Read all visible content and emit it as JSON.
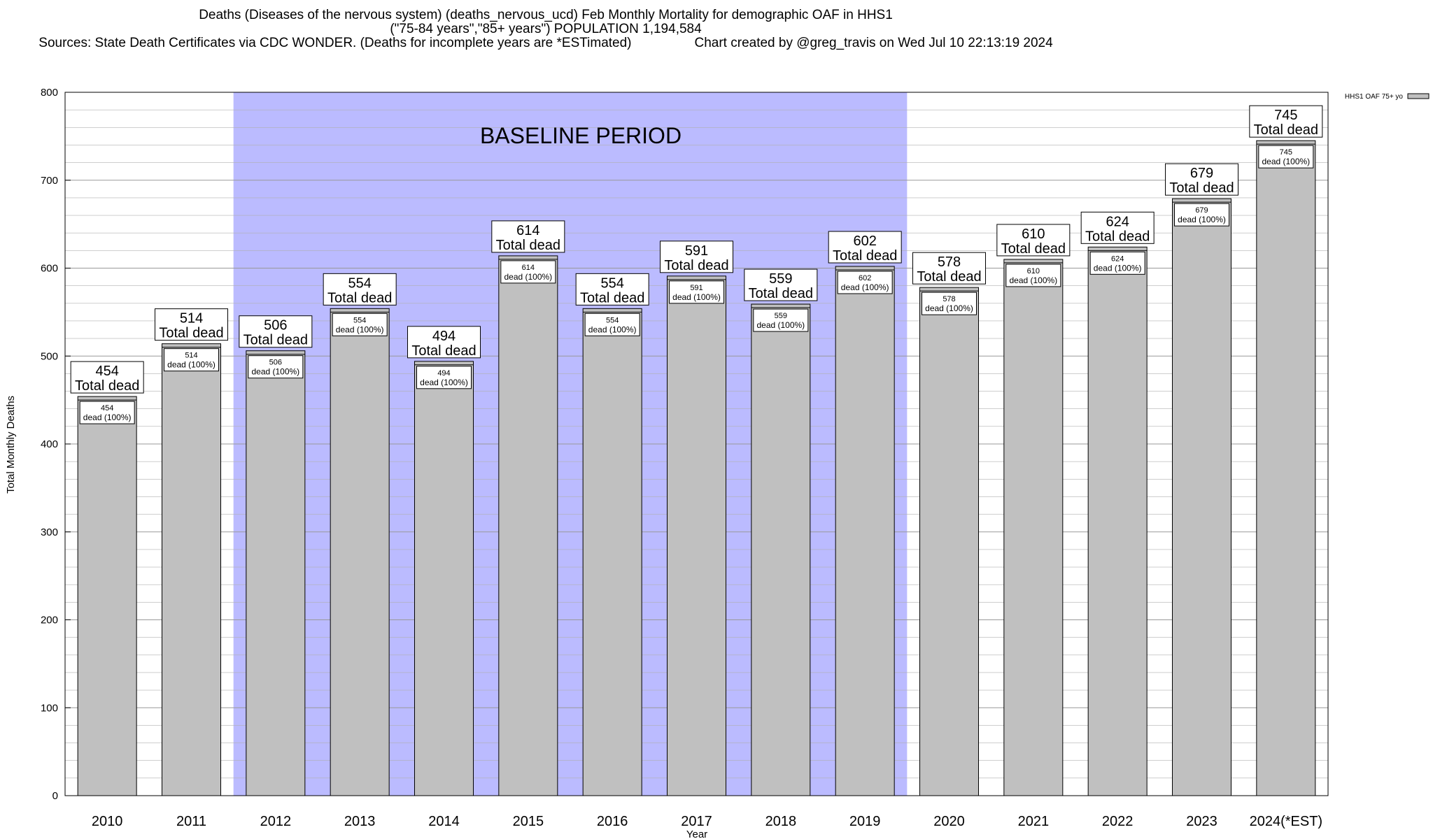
{
  "chart_data": {
    "type": "bar",
    "title_lines": [
      "Deaths (Diseases of the nervous system) (deaths_nervous_ucd) Feb Monthly Mortality for demographic OAF in HHS1",
      "(\"75-84 years\",\"85+ years\") POPULATION 1,194,584"
    ],
    "sources": "Sources: State Death Certificates via CDC WONDER. (Deaths for incomplete years are *ESTimated)",
    "credit": "Chart created by @greg_travis on Wed Jul 10 22:13:19 2024",
    "xlabel": "Year",
    "ylabel": "Total Monthly Deaths",
    "ylim": [
      0,
      800
    ],
    "y_ticks": [
      0,
      100,
      200,
      300,
      400,
      500,
      600,
      700,
      800
    ],
    "y_minor_step": 20,
    "grid": true,
    "legend": {
      "placement": "top-right",
      "label": "HHS1 OAF 75+ yo"
    },
    "categories": [
      "2010",
      "2011",
      "2012",
      "2013",
      "2014",
      "2015",
      "2016",
      "2017",
      "2018",
      "2019",
      "2020",
      "2021",
      "2022",
      "2023",
      "2024(*EST)"
    ],
    "series": [
      {
        "name": "HHS1 OAF 75+ yo",
        "values": [
          454,
          514,
          506,
          554,
          494,
          614,
          554,
          591,
          559,
          602,
          578,
          610,
          624,
          679,
          745
        ]
      }
    ],
    "total_label": "Total dead",
    "inner_label_suffix": "dead (100%)",
    "baseline": {
      "label": "BASELINE PERIOD",
      "from": "2012",
      "to": "2019"
    },
    "colors": {
      "bar": "#c0c0c0",
      "baseline": "#bbbbff",
      "grid": "#b0b0b0"
    }
  }
}
